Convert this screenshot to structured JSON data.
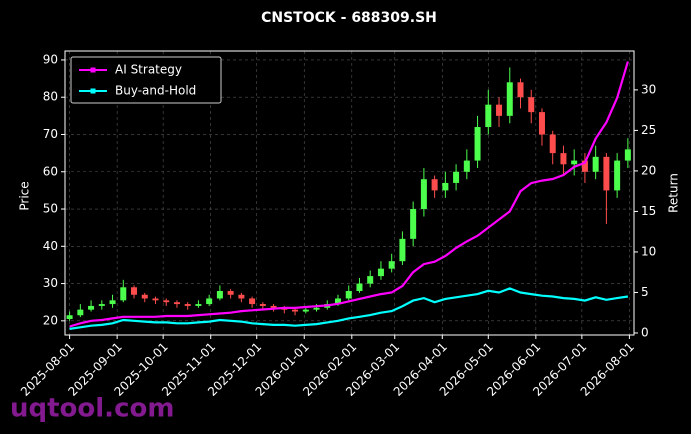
{
  "chart_data": {
    "type": "candlestick",
    "title": "CNSTOCK - 688309.SH",
    "ylabel": "Price",
    "y2label": "Return",
    "x": [
      "2025-08-01",
      "2025-08-08",
      "2025-08-15",
      "2025-08-22",
      "2025-08-29",
      "2025-09-05",
      "2025-09-12",
      "2025-09-19",
      "2025-09-26",
      "2025-10-03",
      "2025-10-10",
      "2025-10-17",
      "2025-10-24",
      "2025-10-31",
      "2025-11-07",
      "2025-11-14",
      "2025-11-21",
      "2025-11-28",
      "2025-12-05",
      "2025-12-12",
      "2025-12-19",
      "2025-12-26",
      "2026-01-02",
      "2026-01-09",
      "2026-01-16",
      "2026-01-23",
      "2026-01-30",
      "2026-02-06",
      "2026-02-13",
      "2026-02-20",
      "2026-02-27",
      "2026-03-06",
      "2026-03-13",
      "2026-03-20",
      "2026-03-27",
      "2026-04-03",
      "2026-04-10",
      "2026-04-17",
      "2026-04-24",
      "2026-05-01",
      "2026-05-08",
      "2026-05-15",
      "2026-05-22",
      "2026-05-29",
      "2026-06-05",
      "2026-06-12",
      "2026-06-19",
      "2026-06-26",
      "2026-07-03",
      "2026-07-10",
      "2026-07-17",
      "2026-07-24",
      "2026-07-31"
    ],
    "open": [
      20.5,
      21.5,
      23,
      24,
      24.5,
      25.5,
      29,
      27,
      26,
      25.5,
      25,
      24.5,
      24,
      24.5,
      26,
      28,
      27,
      26,
      24.5,
      24,
      23.5,
      23,
      22.5,
      23,
      23.5,
      24.5,
      26,
      28,
      30,
      32,
      34,
      36,
      42,
      50,
      58,
      55,
      57,
      60,
      63,
      72,
      78,
      75,
      84,
      80,
      76,
      70,
      65,
      62,
      63,
      60,
      64,
      55,
      63
    ],
    "high": [
      22.5,
      24.5,
      25.5,
      25.5,
      27,
      31,
      29.5,
      27.5,
      26.5,
      26,
      25.5,
      25,
      25.5,
      27,
      29.5,
      28.5,
      27.5,
      26.5,
      25,
      24.5,
      24,
      23.5,
      24,
      24.5,
      25.5,
      27,
      29.5,
      31.5,
      33.5,
      36,
      38,
      44,
      52,
      61,
      59,
      60,
      62,
      66,
      75,
      82,
      80,
      88,
      85,
      82,
      77,
      71,
      67,
      66,
      65,
      67,
      65,
      65,
      69
    ],
    "low": [
      20,
      21,
      22.5,
      23,
      23.5,
      25,
      26,
      25,
      24.5,
      24,
      23.5,
      23,
      23.5,
      24,
      25.5,
      26,
      25,
      23.5,
      23,
      22.5,
      22,
      21.5,
      22,
      22.5,
      23,
      24,
      25.5,
      27.5,
      29,
      31,
      33,
      35,
      40,
      48,
      53,
      53,
      55,
      58,
      61,
      70,
      72,
      73,
      77,
      73,
      67,
      62,
      59,
      59,
      57,
      58,
      46,
      53,
      61
    ],
    "close": [
      21.5,
      23,
      24,
      24.5,
      25.5,
      29,
      27,
      26,
      25.5,
      25,
      24.5,
      24,
      24.5,
      26,
      28,
      27,
      26,
      24.5,
      24,
      23.5,
      23,
      22.5,
      23,
      23.5,
      24.5,
      26,
      28,
      30,
      32,
      34,
      36,
      42,
      50,
      58,
      55,
      57,
      60,
      63,
      72,
      78,
      75,
      84,
      80,
      76,
      70,
      65,
      62,
      63,
      60,
      64,
      55,
      63,
      66
    ],
    "up_color": "#4dff4d",
    "down_color": "#ff4d4d",
    "series": [
      {
        "name": "AI Strategy",
        "color": "#ff00ff",
        "axis": "y2",
        "values": [
          0.8,
          1.2,
          1.5,
          1.6,
          1.8,
          2.0,
          2.0,
          2.0,
          2.0,
          2.1,
          2.1,
          2.1,
          2.2,
          2.3,
          2.4,
          2.5,
          2.7,
          2.8,
          2.9,
          3.0,
          3.1,
          3.1,
          3.2,
          3.3,
          3.4,
          3.6,
          3.9,
          4.2,
          4.5,
          4.8,
          5.0,
          5.8,
          7.5,
          8.5,
          8.8,
          9.5,
          10.5,
          11.3,
          12.0,
          13.0,
          14.0,
          15.0,
          17.5,
          18.5,
          18.8,
          19.0,
          19.5,
          20.5,
          21.0,
          24.0,
          26.0,
          29.0,
          33.5
        ]
      },
      {
        "name": "Buy-and-Hold",
        "color": "#00ffff",
        "axis": "y2",
        "values": [
          0.5,
          0.7,
          0.9,
          1.0,
          1.2,
          1.6,
          1.5,
          1.4,
          1.3,
          1.3,
          1.2,
          1.2,
          1.3,
          1.4,
          1.6,
          1.5,
          1.4,
          1.2,
          1.1,
          1.0,
          1.0,
          0.9,
          1.0,
          1.1,
          1.3,
          1.5,
          1.8,
          2.0,
          2.2,
          2.5,
          2.7,
          3.3,
          4.0,
          4.3,
          3.8,
          4.2,
          4.4,
          4.6,
          4.8,
          5.2,
          5.0,
          5.5,
          5.0,
          4.8,
          4.6,
          4.5,
          4.3,
          4.2,
          4.0,
          4.4,
          4.1,
          4.3,
          4.5
        ]
      }
    ],
    "xlim": [
      "2025-07-29",
      "2026-08-04"
    ],
    "xticks": [
      "2025-08-01",
      "2025-09-01",
      "2025-10-01",
      "2025-11-01",
      "2025-12-01",
      "2026-01-01",
      "2026-02-01",
      "2026-03-01",
      "2026-04-01",
      "2026-05-01",
      "2026-06-01",
      "2026-07-01",
      "2026-08-01"
    ],
    "ylim": [
      16.2,
      92.4
    ],
    "yticks": [
      20,
      30,
      40,
      50,
      60,
      70,
      80,
      90
    ],
    "y2lim": [
      -0.25,
      34.8
    ],
    "y2ticks": [
      0,
      5,
      10,
      15,
      20,
      25,
      30
    ],
    "grid": true,
    "legend": "upper left"
  },
  "watermark": "uqtool.com"
}
